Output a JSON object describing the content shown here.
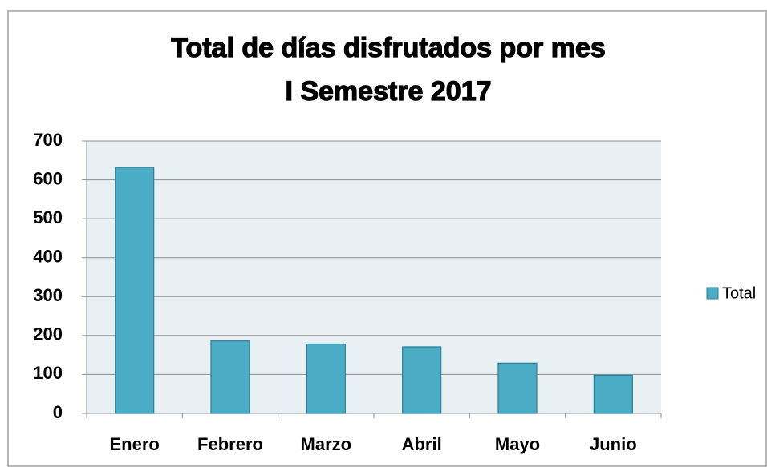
{
  "chart_data": {
    "type": "bar",
    "title": "Total de días disfrutados por mes",
    "subtitle": "I Semestre 2017",
    "categories": [
      "Enero",
      "Febrero",
      "Marzo",
      "Abril",
      "Mayo",
      "Junio"
    ],
    "series": [
      {
        "name": "Total",
        "color": "#4bacc6",
        "values": [
          632,
          186,
          178,
          171,
          129,
          98
        ]
      }
    ],
    "ylim": [
      0,
      700
    ],
    "yticks": [
      0,
      100,
      200,
      300,
      400,
      500,
      600,
      700
    ],
    "grid": true,
    "legend": "right"
  }
}
